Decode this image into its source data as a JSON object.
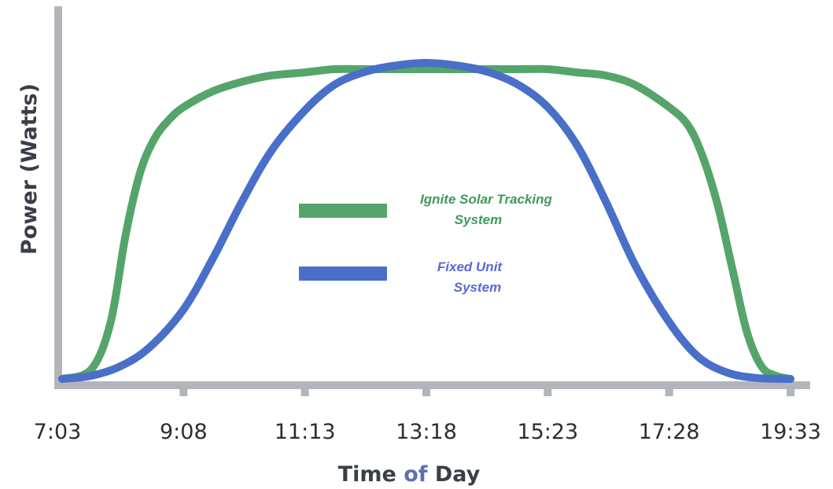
{
  "chart_data": {
    "type": "line",
    "xlabel": "Time of Day",
    "ylabel": "Power (Watts)",
    "x_ticks": [
      "7:03",
      "9:08",
      "11:13",
      "13:18",
      "15:23",
      "17:28",
      "19:33"
    ],
    "y_range": [
      0,
      100
    ],
    "grid": false,
    "legend_position": "center",
    "series": [
      {
        "name": "Ignite Solar Tracking System",
        "color": "#55a56a",
        "x": [
          "7:03",
          "7:33",
          "7:53",
          "8:08",
          "8:23",
          "8:38",
          "8:53",
          "9:08",
          "9:38",
          "10:08",
          "10:38",
          "11:13",
          "11:43",
          "12:13",
          "12:43",
          "13:18",
          "13:53",
          "14:23",
          "14:53",
          "15:23",
          "15:53",
          "16:23",
          "16:53",
          "17:28",
          "17:48",
          "18:03",
          "18:18",
          "18:33",
          "18:48",
          "19:03",
          "19:18",
          "19:33"
        ],
        "values": [
          0,
          3,
          18,
          45,
          65,
          76,
          82,
          86,
          91,
          94,
          96,
          97,
          98,
          98,
          98,
          98,
          98,
          98,
          98,
          98,
          97,
          96,
          93,
          86,
          80,
          70,
          55,
          35,
          15,
          4,
          1,
          0
        ]
      },
      {
        "name": "Fixed Unit System",
        "color": "#4a6fc8",
        "x": [
          "7:03",
          "7:33",
          "8:03",
          "8:33",
          "9:08",
          "9:38",
          "10:08",
          "10:38",
          "11:13",
          "11:43",
          "12:13",
          "12:43",
          "13:18",
          "13:53",
          "14:23",
          "14:53",
          "15:23",
          "15:53",
          "16:23",
          "16:53",
          "17:28",
          "17:58",
          "18:28",
          "18:58",
          "19:33"
        ],
        "values": [
          0,
          1,
          4,
          10,
          22,
          38,
          56,
          72,
          85,
          93,
          97,
          99,
          100,
          99,
          97,
          93,
          86,
          74,
          56,
          36,
          18,
          7,
          2,
          0.3,
          0
        ]
      }
    ]
  },
  "legend": {
    "tracking_line1": "Ignite Solar Tracking",
    "tracking_line2": "System",
    "fixed_line1": "Fixed Unit",
    "fixed_line2": "System"
  },
  "colors": {
    "axis": "#b2b5b9",
    "tracking_text": "#3f9a5a",
    "fixed_text": "#5a69d6",
    "xlabel_word_of": "#5b6fb6"
  }
}
